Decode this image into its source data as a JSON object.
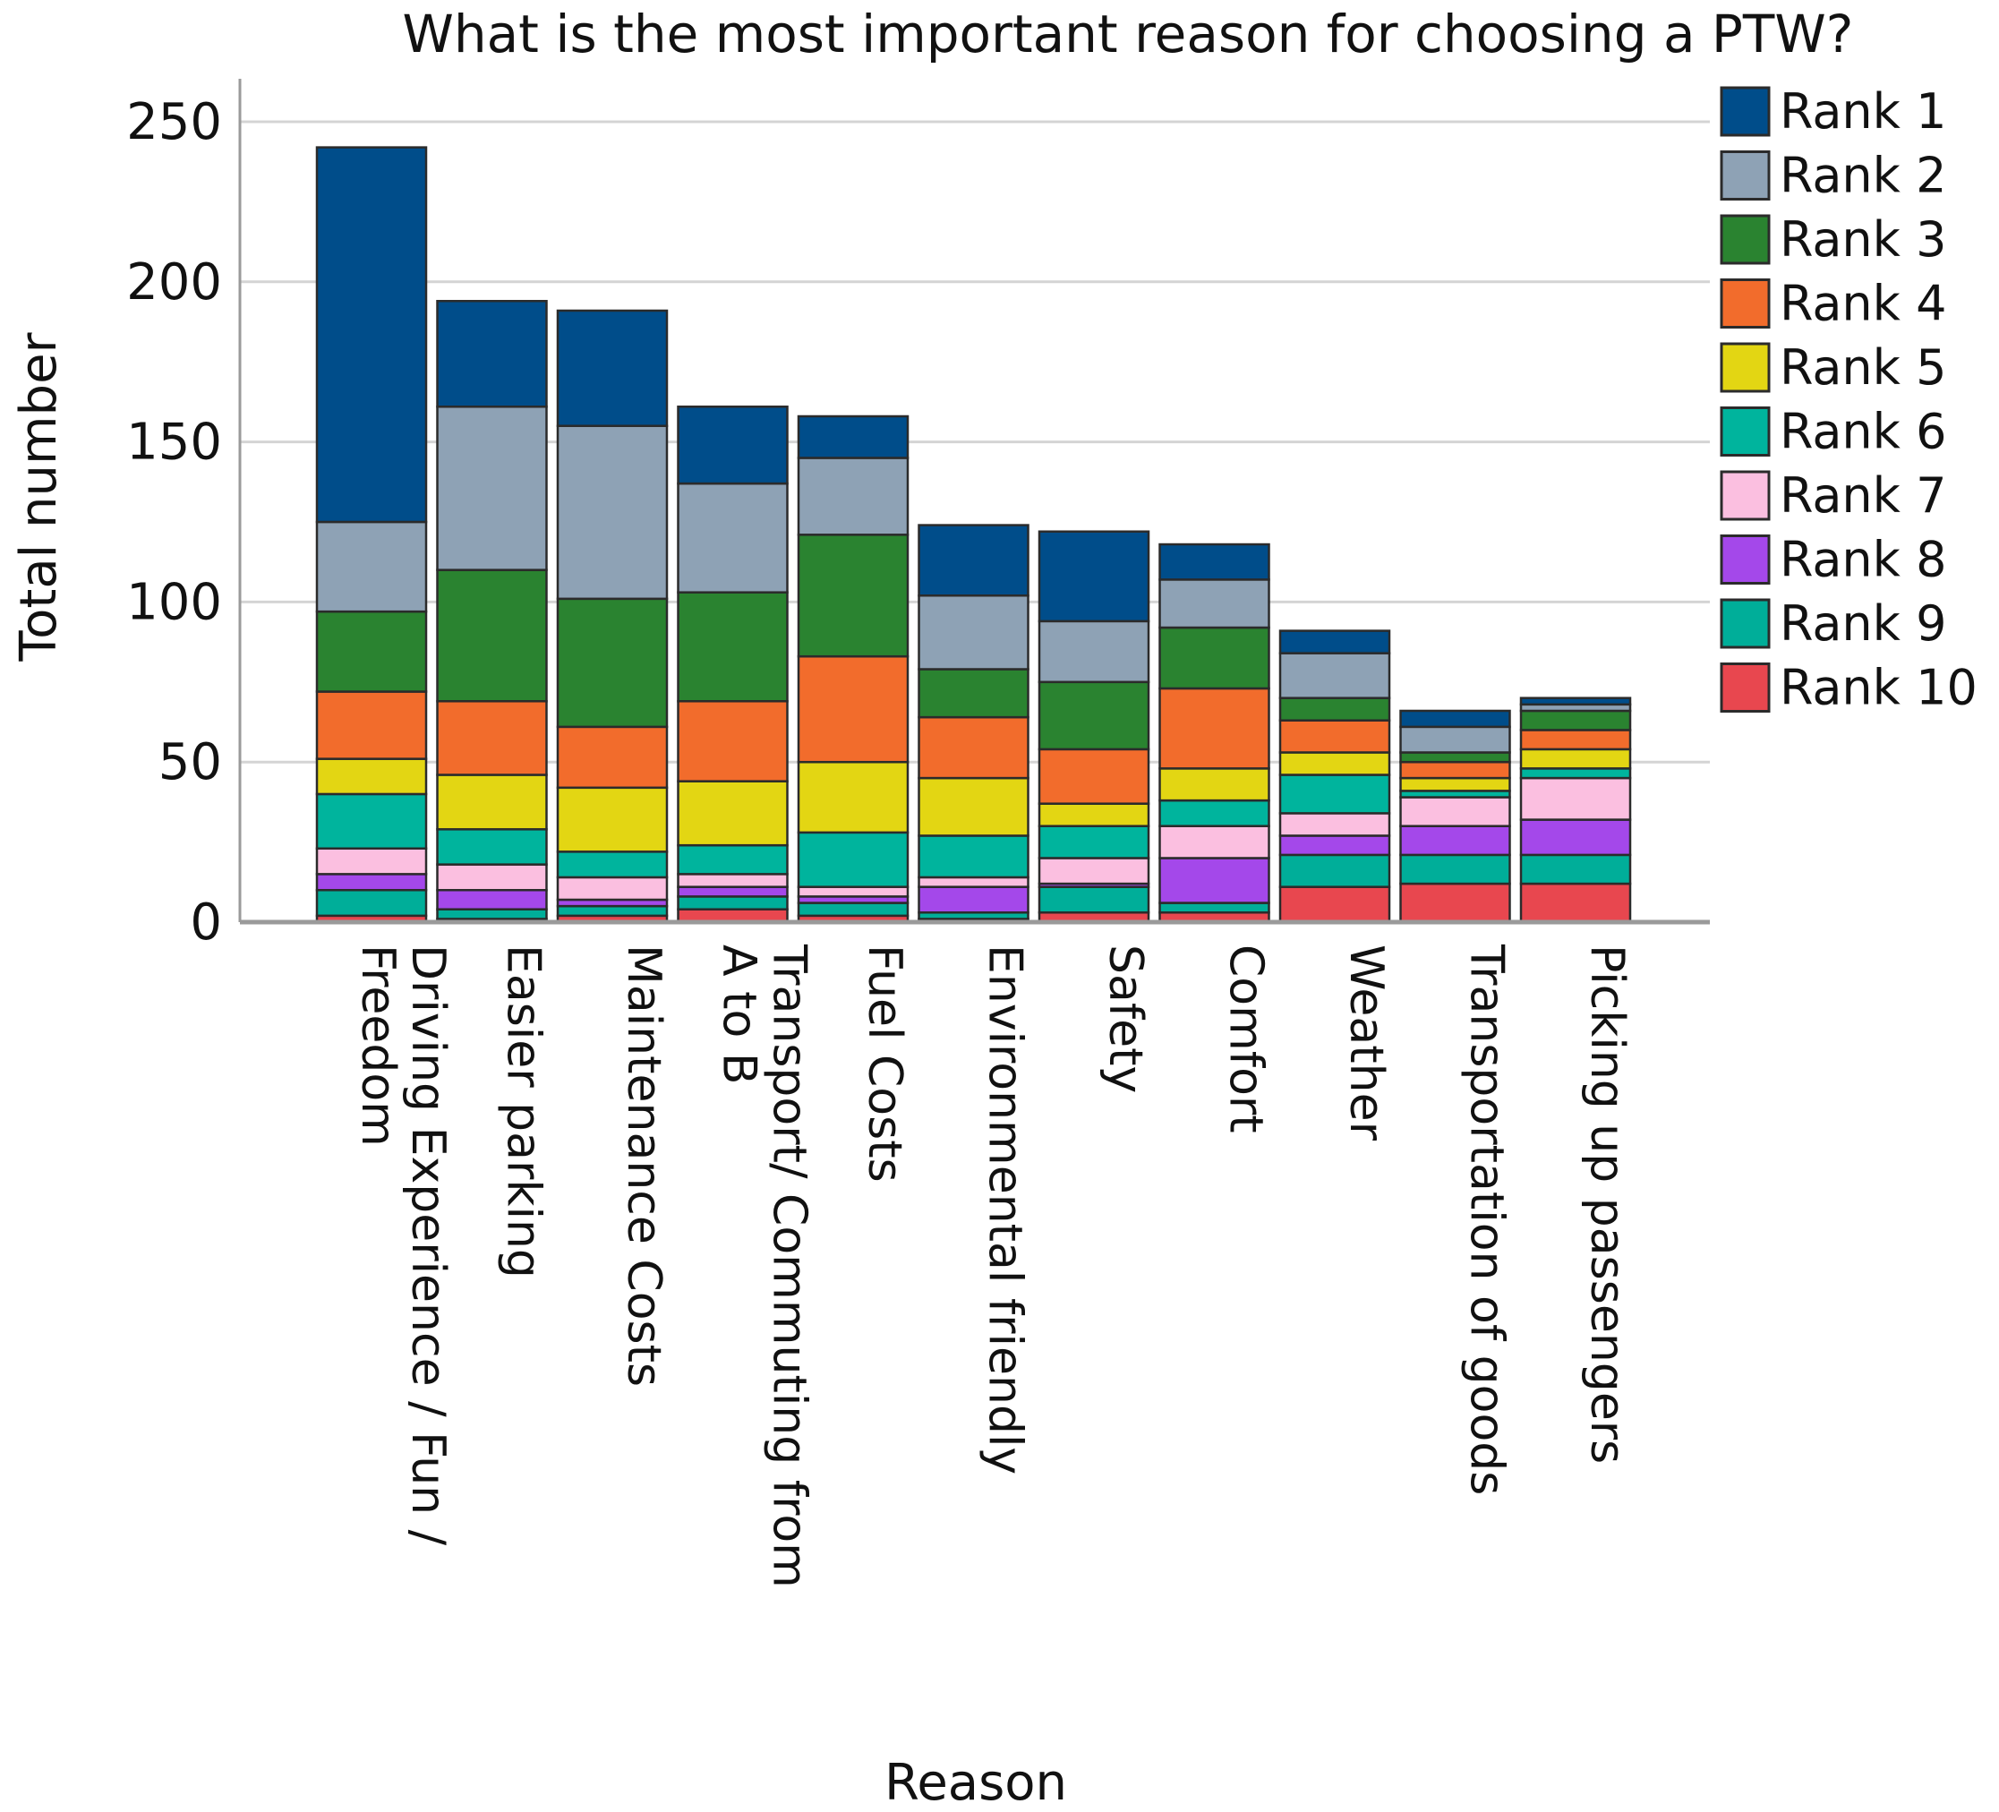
{
  "chart_data": {
    "type": "bar",
    "stacked": true,
    "title": "What is the most important reason for choosing a PTW?",
    "xlabel": "Reason",
    "ylabel": "Total number",
    "ylim": [
      0,
      250
    ],
    "yticks": [
      0,
      50,
      100,
      150,
      200,
      250
    ],
    "grid": true,
    "legend_position": "top-right",
    "categories": [
      [
        "Driving Experience / Fun /",
        "Freedom"
      ],
      [
        "Easier parking"
      ],
      [
        "Maintenance Costs"
      ],
      [
        "Transport/ Commuting from",
        "A to B"
      ],
      [
        "Fuel Costs"
      ],
      [
        "Environmental friendly"
      ],
      [
        "Safety"
      ],
      [
        "Comfort"
      ],
      [
        "Weather"
      ],
      [
        "Transportation of goods"
      ],
      [
        "Picking up passengers"
      ]
    ],
    "series": [
      {
        "name": "Rank 10",
        "color": "#e8474f",
        "values": [
          2,
          1,
          2,
          4,
          2,
          1,
          3,
          3,
          11,
          12,
          12
        ]
      },
      {
        "name": "Rank 9",
        "color": "#00ae99",
        "values": [
          8,
          3,
          3,
          4,
          4,
          2,
          8,
          3,
          10,
          9,
          9
        ]
      },
      {
        "name": "Rank 8",
        "color": "#a448ea",
        "values": [
          5,
          6,
          2,
          3,
          2,
          8,
          1,
          14,
          6,
          9,
          11
        ]
      },
      {
        "name": "Rank 7",
        "color": "#fbbfe0",
        "values": [
          8,
          8,
          7,
          4,
          3,
          3,
          8,
          10,
          7,
          9,
          13
        ]
      },
      {
        "name": "Rank 6",
        "color": "#00b49d",
        "values": [
          17,
          11,
          8,
          9,
          17,
          13,
          10,
          8,
          12,
          2,
          3
        ]
      },
      {
        "name": "Rank 5",
        "color": "#e3d613",
        "values": [
          11,
          17,
          20,
          20,
          22,
          18,
          7,
          10,
          7,
          4,
          6
        ]
      },
      {
        "name": "Rank 4",
        "color": "#f26c2c",
        "values": [
          21,
          23,
          19,
          25,
          33,
          19,
          17,
          25,
          10,
          5,
          6
        ]
      },
      {
        "name": "Rank 3",
        "color": "#2a8330",
        "values": [
          25,
          41,
          40,
          34,
          38,
          15,
          21,
          19,
          7,
          3,
          6
        ]
      },
      {
        "name": "Rank 2",
        "color": "#8ea2b5",
        "values": [
          28,
          51,
          54,
          34,
          24,
          23,
          19,
          15,
          14,
          8,
          2
        ]
      },
      {
        "name": "Rank 1",
        "color": "#004d8a",
        "values": [
          117,
          33,
          36,
          24,
          13,
          22,
          28,
          11,
          7,
          5,
          2
        ]
      }
    ]
  }
}
